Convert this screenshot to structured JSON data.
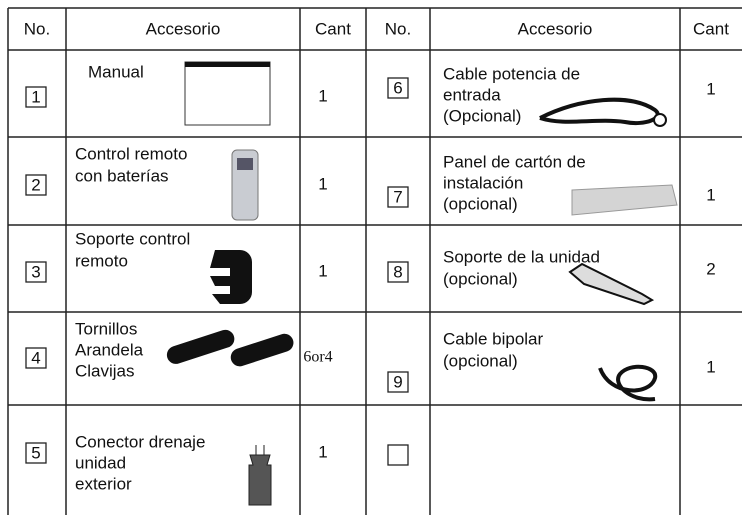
{
  "table": {
    "headers": [
      "No.",
      "Accesorio",
      "Cant",
      "No.",
      "Accesorio",
      "Cant"
    ],
    "rows": [
      {
        "left": {
          "no": "1",
          "accesorio": [
            "Manual"
          ],
          "cant": "1"
        },
        "right": {
          "no": "6",
          "accesorio": [
            "Cable potencia de",
            "entrada",
            "(Opcional)"
          ],
          "cant": "1"
        }
      },
      {
        "left": {
          "no": "2",
          "accesorio": [
            "Control remoto",
            "con baterías"
          ],
          "cant": "1"
        },
        "right": {
          "no": "7",
          "accesorio": [
            "Panel de cartón de",
            "instalación",
            "(opcional)"
          ],
          "cant": "1"
        }
      },
      {
        "left": {
          "no": "3",
          "accesorio": [
            "Soporte control",
            "remoto"
          ],
          "cant": "1"
        },
        "right": {
          "no": "8",
          "accesorio": [
            "Soporte de la unidad",
            "(opcional)"
          ],
          "cant": "2"
        }
      },
      {
        "left": {
          "no": "4",
          "accesorio": [
            "Tornillos",
            "Arandela",
            "Clavijas"
          ],
          "cant": "6or4"
        },
        "right": {
          "no": "9",
          "accesorio": [
            "Cable bipolar",
            "(opcional)"
          ],
          "cant": "1"
        }
      },
      {
        "left": {
          "no": "5",
          "accesorio": [
            "Conector drenaje",
            "unidad",
            "exterior"
          ],
          "cant": "1"
        }
      }
    ]
  }
}
